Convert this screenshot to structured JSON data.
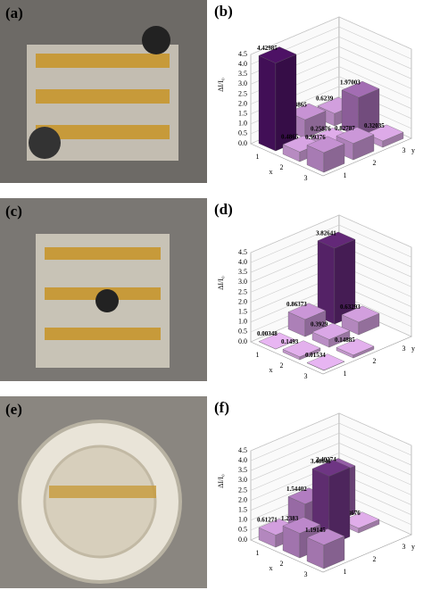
{
  "photos": [
    {
      "label": "(a)"
    },
    {
      "label": "(c)"
    },
    {
      "label": "(e)"
    }
  ],
  "chart_data": [
    {
      "type": "bar3d",
      "panel_label": "(b)",
      "zlabel": "ΔI/I₀",
      "x_categories": [
        "1",
        "2",
        "3"
      ],
      "y_categories": [
        "1",
        "2",
        "3"
      ],
      "xlabel": "x",
      "ylabel": "y",
      "values": [
        [
          4.42985,
          0.93865,
          0.6239
        ],
        [
          0.4865,
          0.25876,
          1.97003
        ],
        [
          0.99376,
          0.82787,
          0.32035
        ]
      ],
      "zlim": [
        0,
        4.5
      ],
      "zticks": [
        {
          "value": 0,
          "label": "0.0"
        },
        0.5,
        {
          "value": 1,
          "label": "1.0"
        },
        1.5,
        {
          "value": 2,
          "label": "2.0"
        },
        2.5,
        {
          "value": 3,
          "label": "3.0"
        },
        3.5,
        {
          "value": 4,
          "label": "4.0"
        },
        4.5
      ],
      "colormap": [
        "#e8b6f2",
        "#4b0f63"
      ]
    },
    {
      "type": "bar3d",
      "panel_label": "(d)",
      "zlabel": "ΔI/I₀",
      "x_categories": [
        "1",
        "2",
        "3"
      ],
      "y_categories": [
        "1",
        "2",
        "3"
      ],
      "xlabel": "x",
      "ylabel": "y",
      "values": [
        [
          0.00348,
          0.86373,
          3.82641
        ],
        [
          0.1493,
          0.3929,
          0.63293
        ],
        [
          0.01534,
          0.14885,
          null
        ]
      ],
      "zlim": [
        0,
        4.5
      ],
      "zticks": [
        {
          "value": 0,
          "label": "0.0"
        },
        0.5,
        {
          "value": 1,
          "label": "1.0"
        },
        1.5,
        {
          "value": 2,
          "label": "2.0"
        },
        2.5,
        {
          "value": 3,
          "label": "3.0"
        },
        3.5,
        {
          "value": 4,
          "label": "4.0"
        },
        4.5
      ],
      "colormap": [
        "#e8b6f2",
        "#4b0f63"
      ]
    },
    {
      "type": "bar3d",
      "panel_label": "(f)",
      "zlabel": "ΔI/I₀",
      "x_categories": [
        "1",
        "2",
        "3"
      ],
      "y_categories": [
        "1",
        "2",
        "3"
      ],
      "xlabel": "x",
      "ylabel": "y",
      "values": [
        [
          0.61271,
          1.54402,
          2.40274
        ],
        [
          1.2383,
          3.48648,
          0.23676
        ],
        [
          1.19145,
          null,
          null
        ]
      ],
      "zlim": [
        0,
        4.5
      ],
      "zticks": [
        {
          "value": 0,
          "label": "0.0"
        },
        0.5,
        {
          "value": 1,
          "label": "1.0"
        },
        1.5,
        {
          "value": 2,
          "label": "2.0"
        },
        2.5,
        {
          "value": 3,
          "label": "3.0"
        },
        3.5,
        {
          "value": 4,
          "label": "4.0"
        },
        4.5
      ],
      "colormap": [
        "#e8b6f2",
        "#4b0f63"
      ]
    }
  ]
}
